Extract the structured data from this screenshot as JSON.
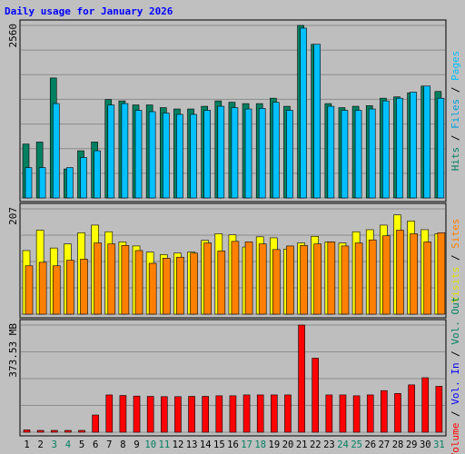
{
  "colors": {
    "background": "#c0c0c0",
    "panel": "#bebebe",
    "hits": "#008060",
    "files": "#00c0ff",
    "pages": "#00e0ff",
    "visits": "#ffff00",
    "sites": "#ff8000",
    "volume": "#ff0000",
    "title": "#0000ff",
    "weekend": "#008060",
    "axis_label": "#000000"
  },
  "chart_data": {
    "type": "bar",
    "title": "Daily usage for January 2026",
    "categories": [
      "1",
      "2",
      "3",
      "4",
      "5",
      "6",
      "7",
      "8",
      "9",
      "10",
      "11",
      "12",
      "13",
      "14",
      "15",
      "16",
      "17",
      "18",
      "19",
      "20",
      "21",
      "22",
      "23",
      "24",
      "25",
      "26",
      "27",
      "28",
      "29",
      "30",
      "31"
    ],
    "weekend_days": [
      "3",
      "4",
      "10",
      "11",
      "17",
      "18",
      "24",
      "25",
      "31"
    ],
    "panels": [
      {
        "name": "hits-files-pages",
        "ymax_label": "2560",
        "ymax": 2560,
        "series": [
          {
            "name": "Hits",
            "values": [
              800,
              830,
              1780,
              430,
              700,
              830,
              1460,
              1440,
              1380,
              1380,
              1340,
              1320,
              1320,
              1360,
              1440,
              1420,
              1400,
              1400,
              1480,
              1360,
              2560,
              2280,
              1400,
              1340,
              1360,
              1370,
              1480,
              1500,
              1560,
              1660,
              1580
            ]
          },
          {
            "name": "Files",
            "values": [
              450,
              450,
              1400,
              450,
              600,
              700,
              1380,
              1400,
              1300,
              1280,
              1260,
              1240,
              1240,
              1300,
              1360,
              1340,
              1320,
              1330,
              1420,
              1300,
              2520,
              2280,
              1360,
              1300,
              1300,
              1320,
              1440,
              1480,
              1570,
              1660,
              1480
            ]
          }
        ],
        "right_label": [
          {
            "text": "Hits",
            "color": "#008060"
          },
          {
            "text": " / ",
            "color": "#000000"
          },
          {
            "text": "Files",
            "color": "#00a0e0"
          },
          {
            "text": " / ",
            "color": "#000000"
          },
          {
            "text": "Pages",
            "color": "#00c0ff"
          }
        ]
      },
      {
        "name": "visits-sites",
        "ymax_label": "207",
        "ymax": 207,
        "series": [
          {
            "name": "Visits",
            "values": [
              125,
              165,
              130,
              138,
              160,
              175,
              162,
              142,
              134,
              122,
              117,
              120,
              122,
              145,
              158,
              156,
              132,
              152,
              150,
              128,
              140,
              153,
              142,
              140,
              162,
              166,
              175,
              195,
              183,
              166,
              158
            ]
          },
          {
            "name": "Sites",
            "values": [
              95,
              102,
              95,
              106,
              108,
              140,
              138,
              135,
              125,
              100,
              110,
              112,
              120,
              140,
              124,
              143,
              142,
              138,
              127,
              134,
              135,
              138,
              142,
              134,
              140,
              146,
              154,
              165,
              158,
              142,
              160
            ]
          }
        ],
        "right_label": [
          {
            "text": "Visits",
            "color": "#e0e000"
          },
          {
            "text": " / ",
            "color": "#000000"
          },
          {
            "text": "Sites",
            "color": "#ff8000"
          }
        ]
      },
      {
        "name": "volume",
        "ymax_label": "373.53 MB",
        "ymax": 373.53,
        "series": [
          {
            "name": "Vol. Out",
            "values": [
              0,
              0,
              0,
              0,
              0,
              0,
              0,
              0,
              0,
              0,
              0,
              0,
              0,
              0,
              0,
              0,
              0,
              0,
              0,
              0,
              0,
              0,
              0,
              0,
              0,
              0,
              0,
              0,
              0,
              0,
              0
            ]
          },
          {
            "name": "Vol. In",
            "values": [
              8,
              5,
              5,
              6,
              4,
              60,
              130,
              128,
              126,
              125,
              124,
              124,
              125,
              125,
              127,
              127,
              130,
              130,
              130,
              130,
              373.53,
              258,
              130,
              130,
              127,
              130,
              145,
              135,
              165,
              190,
              160
            ]
          }
        ],
        "right_label": [
          {
            "text": "Volume",
            "color": "#ff0000"
          },
          {
            "text": " / ",
            "color": "#000000"
          },
          {
            "text": "Vol. In",
            "color": "#0000ff"
          },
          {
            "text": " / ",
            "color": "#000000"
          },
          {
            "text": "Vol. Out",
            "color": "#008060"
          }
        ]
      }
    ],
    "grid": true
  }
}
